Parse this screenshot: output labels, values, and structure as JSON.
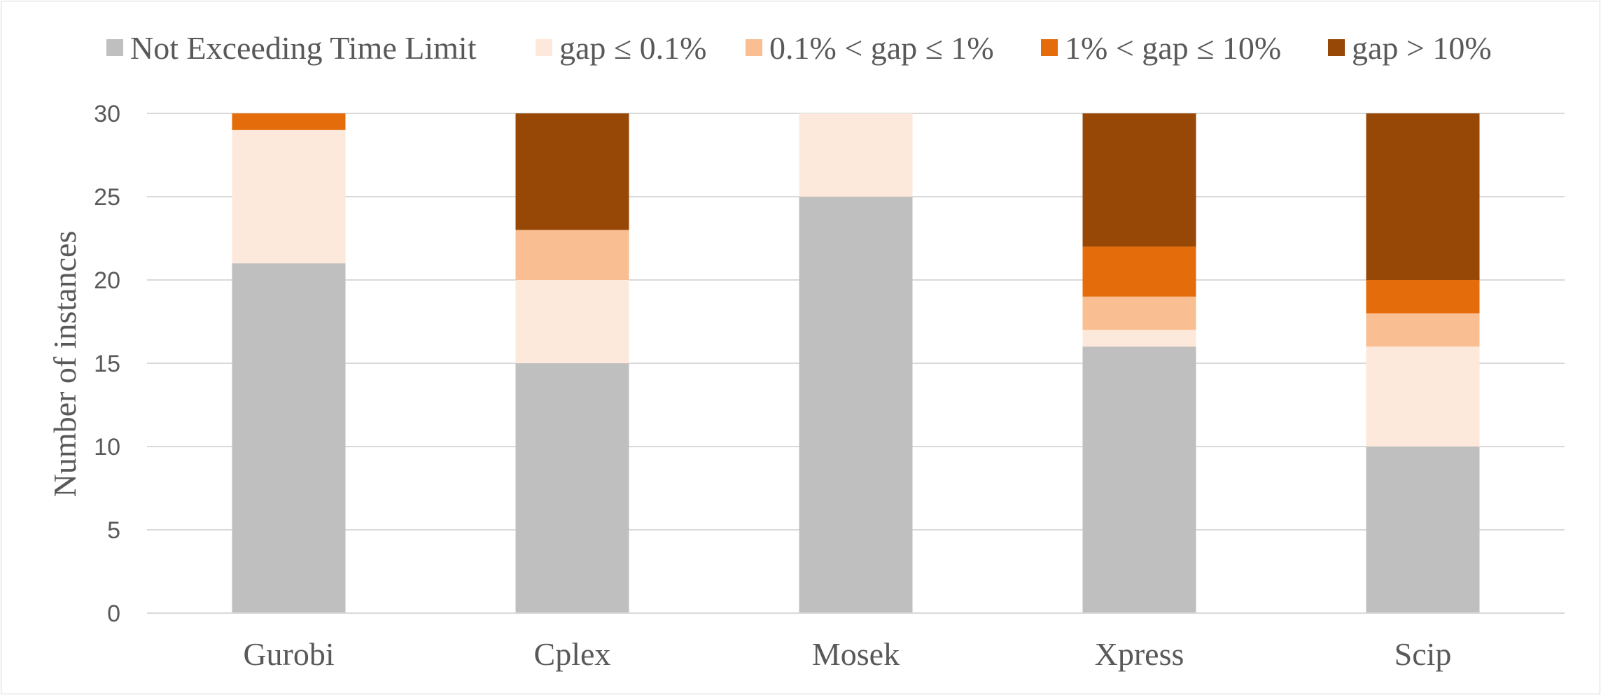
{
  "chart_data": {
    "type": "bar",
    "stacked": true,
    "categories": [
      "Gurobi",
      "Cplex",
      "Mosek",
      "Xpress",
      "Scip"
    ],
    "series": [
      {
        "name": "Not Exceeding Time Limit",
        "color": "#bfbfbf",
        "values": [
          21,
          15,
          25,
          16,
          10
        ]
      },
      {
        "name": "gap ≤ 0.1%",
        "color": "#fde9db",
        "values": [
          8,
          5,
          5,
          1,
          6
        ]
      },
      {
        "name": "0.1% < gap ≤ 1%",
        "color": "#f9bf92",
        "values": [
          0,
          3,
          0,
          2,
          2
        ]
      },
      {
        "name": "1% < gap ≤ 10%",
        "color": "#e46c0a",
        "values": [
          1,
          0,
          0,
          3,
          2
        ]
      },
      {
        "name": "gap > 10%",
        "color": "#974706",
        "values": [
          0,
          7,
          0,
          8,
          10
        ]
      }
    ],
    "title": "",
    "xlabel": "",
    "ylabel": "Number of instances",
    "ylim": [
      0,
      30
    ],
    "yticks": [
      "0",
      "5",
      "10",
      "15",
      "20",
      "25",
      "30"
    ],
    "grid": true,
    "legend_position": "top"
  }
}
